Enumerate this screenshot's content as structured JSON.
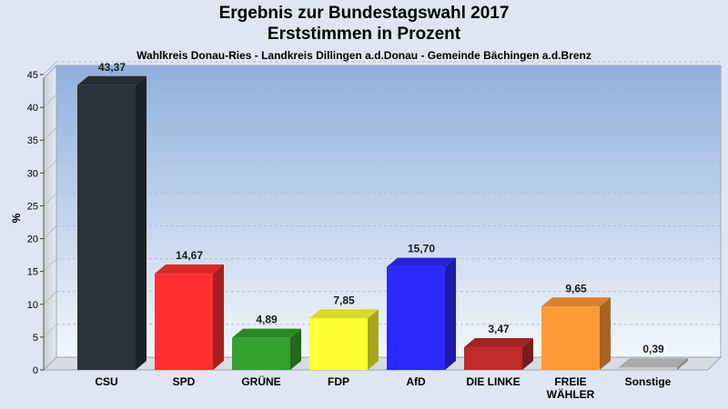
{
  "chart_data": {
    "type": "bar",
    "title": "Ergebnis zur Bundestagswahl 2017",
    "title_line2": "Erststimmen in Prozent",
    "subtitle": "Wahlkreis Donau-Ries - Landkreis Dillingen a.d.Donau - Gemeinde Bächingen a.d.Brenz",
    "ylabel": "%",
    "ylim": [
      0,
      45
    ],
    "yticks": [
      0,
      5,
      10,
      15,
      20,
      25,
      30,
      35,
      40,
      45
    ],
    "categories": [
      "CSU",
      "SPD",
      "GRÜNE",
      "FDP",
      "AfD",
      "DIE LINKE",
      "FREIE WÄHLER",
      "Sonstige"
    ],
    "category_lines": [
      [
        "CSU"
      ],
      [
        "SPD"
      ],
      [
        "GRÜNE"
      ],
      [
        "FDP"
      ],
      [
        "AfD"
      ],
      [
        "DIE LINKE"
      ],
      [
        "FREIE",
        "WÄHLER"
      ],
      [
        "Sonstige"
      ]
    ],
    "values": [
      43.37,
      14.67,
      4.89,
      7.85,
      15.7,
      3.47,
      9.65,
      0.39
    ],
    "value_labels": [
      "43,37",
      "14,67",
      "4,89",
      "7,85",
      "15,70",
      "3,47",
      "9,65",
      "0,39"
    ],
    "colors": [
      "#2f3138",
      "#ff2f2f",
      "#33a12b",
      "#ffff33",
      "#2a2aff",
      "#c02a2a",
      "#ff9a33",
      "#c8c8c8"
    ],
    "grid": true
  }
}
